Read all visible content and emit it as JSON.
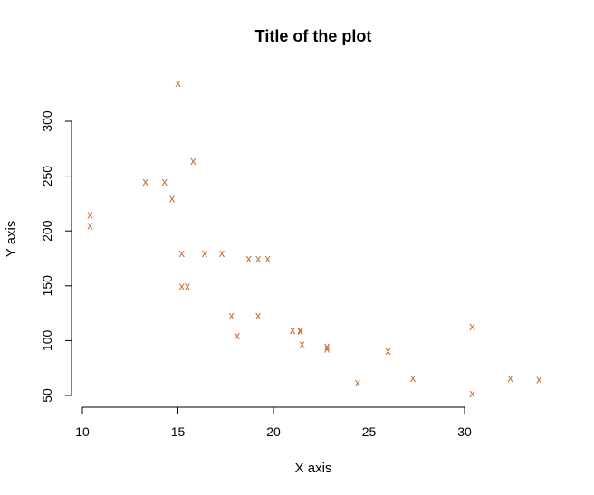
{
  "chart_data": {
    "type": "scatter",
    "title": "Title of the plot",
    "xlabel": "X axis",
    "ylabel": "Y axis",
    "xlim": [
      10,
      34
    ],
    "ylim": [
      50,
      335
    ],
    "xticks": [
      "10",
      "15",
      "20",
      "25",
      "30"
    ],
    "yticks": [
      "50",
      "100",
      "150",
      "200",
      "250",
      "300"
    ],
    "grid": false,
    "marker": "x",
    "color": "#c36a2d",
    "series": [
      {
        "points": [
          {
            "x": 21.0,
            "y": 110
          },
          {
            "x": 21.0,
            "y": 110
          },
          {
            "x": 22.8,
            "y": 93
          },
          {
            "x": 21.4,
            "y": 110
          },
          {
            "x": 18.7,
            "y": 175
          },
          {
            "x": 18.1,
            "y": 105
          },
          {
            "x": 14.3,
            "y": 245
          },
          {
            "x": 24.4,
            "y": 62
          },
          {
            "x": 22.8,
            "y": 95
          },
          {
            "x": 19.2,
            "y": 123
          },
          {
            "x": 17.8,
            "y": 123
          },
          {
            "x": 16.4,
            "y": 180
          },
          {
            "x": 17.3,
            "y": 180
          },
          {
            "x": 15.2,
            "y": 180
          },
          {
            "x": 10.4,
            "y": 205
          },
          {
            "x": 10.4,
            "y": 215
          },
          {
            "x": 14.7,
            "y": 230
          },
          {
            "x": 32.4,
            "y": 66
          },
          {
            "x": 30.4,
            "y": 52
          },
          {
            "x": 33.9,
            "y": 65
          },
          {
            "x": 21.5,
            "y": 97
          },
          {
            "x": 15.5,
            "y": 150
          },
          {
            "x": 15.2,
            "y": 150
          },
          {
            "x": 13.3,
            "y": 245
          },
          {
            "x": 19.2,
            "y": 175
          },
          {
            "x": 27.3,
            "y": 66
          },
          {
            "x": 26.0,
            "y": 91
          },
          {
            "x": 30.4,
            "y": 113
          },
          {
            "x": 15.8,
            "y": 264
          },
          {
            "x": 19.7,
            "y": 175
          },
          {
            "x": 15.0,
            "y": 335
          },
          {
            "x": 21.4,
            "y": 109
          }
        ]
      }
    ]
  }
}
